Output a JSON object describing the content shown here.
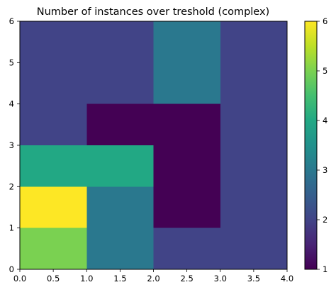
{
  "chart_data": {
    "type": "heatmap",
    "title": "Number of instances over treshold (complex)",
    "xlabel": "",
    "ylabel": "",
    "xlim": [
      0,
      4
    ],
    "ylim": [
      0,
      6
    ],
    "x_edges": [
      0,
      1,
      2,
      3,
      4
    ],
    "y_edges": [
      0,
      1,
      2,
      3,
      4,
      5,
      6
    ],
    "values": [
      [
        5,
        3,
        2,
        2
      ],
      [
        6,
        3,
        1,
        2
      ],
      [
        4,
        4,
        1,
        2
      ],
      [
        2,
        1,
        1,
        2
      ],
      [
        2,
        2,
        3,
        2
      ],
      [
        2,
        2,
        3,
        2
      ]
    ],
    "x_ticks": [
      "0.0",
      "0.5",
      "1.0",
      "1.5",
      "2.0",
      "2.5",
      "3.0",
      "3.5",
      "4.0"
    ],
    "y_ticks": [
      "0",
      "1",
      "2",
      "3",
      "4",
      "5",
      "6"
    ],
    "colormap": "viridis",
    "colorbar": {
      "vmin": 1,
      "vmax": 6,
      "ticks": [
        "1",
        "2",
        "3",
        "4",
        "5",
        "6"
      ]
    },
    "grid": false
  }
}
